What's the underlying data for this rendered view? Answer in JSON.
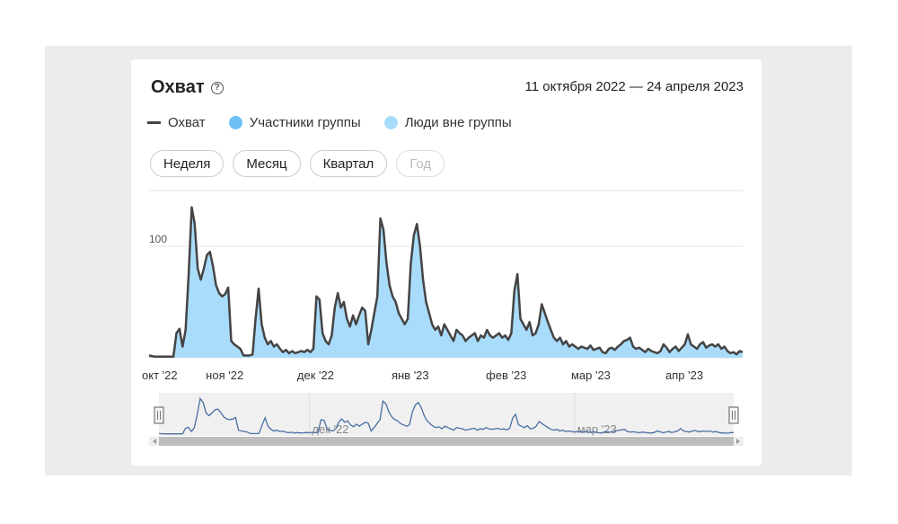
{
  "widget": {
    "title": "Охват",
    "help_icon": "question-circle-icon",
    "date_range": "11 октября 2022 — 24 апреля 2023"
  },
  "legend": [
    {
      "label": "Охват",
      "color": "#444444",
      "shape": "line"
    },
    {
      "label": "Участники группы",
      "color": "#6ec1f7",
      "shape": "dot"
    },
    {
      "label": "Люди вне группы",
      "color": "#a9dcfb",
      "shape": "dot"
    }
  ],
  "periods": [
    {
      "label": "Неделя",
      "enabled": true
    },
    {
      "label": "Месяц",
      "enabled": true
    },
    {
      "label": "Квартал",
      "enabled": true
    },
    {
      "label": "Год",
      "enabled": false
    }
  ],
  "chart_data": {
    "type": "area",
    "x_start": "2022-10-11",
    "x_end": "2023-04-24",
    "ylim": [
      0,
      150
    ],
    "y_ticks": [
      100
    ],
    "grid": true,
    "x_ticks": [
      {
        "label": "окт '22",
        "date": "2022-10-11"
      },
      {
        "label": "ноя '22",
        "date": "2022-11-01"
      },
      {
        "label": "дек '22",
        "date": "2022-12-01"
      },
      {
        "label": "янв '23",
        "date": "2023-01-01"
      },
      {
        "label": "фев '23",
        "date": "2023-02-01"
      },
      {
        "label": "мар '23",
        "date": "2023-03-01"
      },
      {
        "label": "апр '23",
        "date": "2023-04-01"
      }
    ],
    "navigator_ticks": [
      {
        "label": "дек '22",
        "date": "2022-12-01"
      },
      {
        "label": "мар '23",
        "date": "2023-03-01"
      }
    ],
    "series": [
      {
        "name": "Охват",
        "color": "#444444",
        "points": [
          [
            "2022-10-11",
            2
          ],
          [
            "2022-10-13",
            1
          ],
          [
            "2022-10-15",
            1
          ],
          [
            "2022-10-17",
            1
          ],
          [
            "2022-10-19",
            1
          ],
          [
            "2022-10-20",
            22
          ],
          [
            "2022-10-21",
            26
          ],
          [
            "2022-10-22",
            10
          ],
          [
            "2022-10-23",
            25
          ],
          [
            "2022-10-24",
            75
          ],
          [
            "2022-10-25",
            135
          ],
          [
            "2022-10-26",
            120
          ],
          [
            "2022-10-27",
            80
          ],
          [
            "2022-10-28",
            70
          ],
          [
            "2022-10-29",
            80
          ],
          [
            "2022-10-30",
            92
          ],
          [
            "2022-10-31",
            95
          ],
          [
            "2022-11-01",
            82
          ],
          [
            "2022-11-02",
            65
          ],
          [
            "2022-11-03",
            58
          ],
          [
            "2022-11-04",
            55
          ],
          [
            "2022-11-05",
            57
          ],
          [
            "2022-11-06",
            63
          ],
          [
            "2022-11-07",
            15
          ],
          [
            "2022-11-08",
            12
          ],
          [
            "2022-11-09",
            10
          ],
          [
            "2022-11-10",
            8
          ],
          [
            "2022-11-11",
            2
          ],
          [
            "2022-11-12",
            2
          ],
          [
            "2022-11-13",
            2
          ],
          [
            "2022-11-14",
            3
          ],
          [
            "2022-11-15",
            35
          ],
          [
            "2022-11-16",
            62
          ],
          [
            "2022-11-17",
            30
          ],
          [
            "2022-11-18",
            18
          ],
          [
            "2022-11-19",
            12
          ],
          [
            "2022-11-20",
            15
          ],
          [
            "2022-11-21",
            10
          ],
          [
            "2022-11-22",
            12
          ],
          [
            "2022-11-23",
            8
          ],
          [
            "2022-11-24",
            5
          ],
          [
            "2022-11-25",
            7
          ],
          [
            "2022-11-26",
            4
          ],
          [
            "2022-11-27",
            6
          ],
          [
            "2022-11-28",
            4
          ],
          [
            "2022-11-29",
            5
          ],
          [
            "2022-11-30",
            6
          ],
          [
            "2022-12-01",
            5
          ],
          [
            "2022-12-02",
            7
          ],
          [
            "2022-12-03",
            5
          ],
          [
            "2022-12-04",
            8
          ],
          [
            "2022-12-05",
            55
          ],
          [
            "2022-12-06",
            52
          ],
          [
            "2022-12-07",
            22
          ],
          [
            "2022-12-08",
            15
          ],
          [
            "2022-12-09",
            12
          ],
          [
            "2022-12-10",
            20
          ],
          [
            "2022-12-11",
            45
          ],
          [
            "2022-12-12",
            58
          ],
          [
            "2022-12-13",
            45
          ],
          [
            "2022-12-14",
            50
          ],
          [
            "2022-12-15",
            35
          ],
          [
            "2022-12-16",
            28
          ],
          [
            "2022-12-17",
            38
          ],
          [
            "2022-12-18",
            30
          ],
          [
            "2022-12-19",
            38
          ],
          [
            "2022-12-20",
            45
          ],
          [
            "2022-12-21",
            42
          ],
          [
            "2022-12-22",
            12
          ],
          [
            "2022-12-23",
            25
          ],
          [
            "2022-12-24",
            40
          ],
          [
            "2022-12-25",
            55
          ],
          [
            "2022-12-26",
            125
          ],
          [
            "2022-12-27",
            115
          ],
          [
            "2022-12-28",
            85
          ],
          [
            "2022-12-29",
            65
          ],
          [
            "2022-12-30",
            55
          ],
          [
            "2022-12-31",
            50
          ],
          [
            "2023-01-01",
            40
          ],
          [
            "2023-01-02",
            35
          ],
          [
            "2023-01-03",
            30
          ],
          [
            "2023-01-04",
            35
          ],
          [
            "2023-01-05",
            85
          ],
          [
            "2023-01-06",
            110
          ],
          [
            "2023-01-07",
            120
          ],
          [
            "2023-01-08",
            100
          ],
          [
            "2023-01-09",
            70
          ],
          [
            "2023-01-10",
            50
          ],
          [
            "2023-01-11",
            40
          ],
          [
            "2023-01-12",
            30
          ],
          [
            "2023-01-13",
            25
          ],
          [
            "2023-01-14",
            28
          ],
          [
            "2023-01-15",
            20
          ],
          [
            "2023-01-16",
            30
          ],
          [
            "2023-01-17",
            25
          ],
          [
            "2023-01-18",
            20
          ],
          [
            "2023-01-19",
            15
          ],
          [
            "2023-01-20",
            25
          ],
          [
            "2023-01-21",
            22
          ],
          [
            "2023-01-22",
            20
          ],
          [
            "2023-01-23",
            15
          ],
          [
            "2023-01-24",
            18
          ],
          [
            "2023-01-25",
            20
          ],
          [
            "2023-01-26",
            22
          ],
          [
            "2023-01-27",
            15
          ],
          [
            "2023-01-28",
            20
          ],
          [
            "2023-01-29",
            18
          ],
          [
            "2023-01-30",
            25
          ],
          [
            "2023-01-31",
            20
          ],
          [
            "2023-02-01",
            18
          ],
          [
            "2023-02-02",
            20
          ],
          [
            "2023-02-03",
            22
          ],
          [
            "2023-02-04",
            18
          ],
          [
            "2023-02-05",
            20
          ],
          [
            "2023-02-06",
            16
          ],
          [
            "2023-02-07",
            22
          ],
          [
            "2023-02-08",
            60
          ],
          [
            "2023-02-09",
            75
          ],
          [
            "2023-02-10",
            35
          ],
          [
            "2023-02-11",
            30
          ],
          [
            "2023-02-12",
            25
          ],
          [
            "2023-02-13",
            32
          ],
          [
            "2023-02-14",
            20
          ],
          [
            "2023-02-15",
            22
          ],
          [
            "2023-02-16",
            30
          ],
          [
            "2023-02-17",
            48
          ],
          [
            "2023-02-18",
            40
          ],
          [
            "2023-02-19",
            32
          ],
          [
            "2023-02-20",
            25
          ],
          [
            "2023-02-21",
            18
          ],
          [
            "2023-02-22",
            15
          ],
          [
            "2023-02-23",
            18
          ],
          [
            "2023-02-24",
            12
          ],
          [
            "2023-02-25",
            15
          ],
          [
            "2023-02-26",
            10
          ],
          [
            "2023-02-27",
            12
          ],
          [
            "2023-02-28",
            10
          ],
          [
            "2023-03-01",
            8
          ],
          [
            "2023-03-02",
            10
          ],
          [
            "2023-03-03",
            9
          ],
          [
            "2023-03-04",
            8
          ],
          [
            "2023-03-05",
            11
          ],
          [
            "2023-03-06",
            7
          ],
          [
            "2023-03-07",
            8
          ],
          [
            "2023-03-08",
            9
          ],
          [
            "2023-03-09",
            5
          ],
          [
            "2023-03-10",
            4
          ],
          [
            "2023-03-11",
            8
          ],
          [
            "2023-03-12",
            9
          ],
          [
            "2023-03-13",
            7
          ],
          [
            "2023-03-14",
            10
          ],
          [
            "2023-03-15",
            12
          ],
          [
            "2023-03-16",
            15
          ],
          [
            "2023-03-17",
            16
          ],
          [
            "2023-03-18",
            18
          ],
          [
            "2023-03-19",
            10
          ],
          [
            "2023-03-20",
            8
          ],
          [
            "2023-03-21",
            9
          ],
          [
            "2023-03-22",
            7
          ],
          [
            "2023-03-23",
            5
          ],
          [
            "2023-03-24",
            8
          ],
          [
            "2023-03-25",
            6
          ],
          [
            "2023-03-26",
            5
          ],
          [
            "2023-03-27",
            4
          ],
          [
            "2023-03-28",
            6
          ],
          [
            "2023-03-29",
            12
          ],
          [
            "2023-03-30",
            9
          ],
          [
            "2023-03-31",
            5
          ],
          [
            "2023-04-01",
            8
          ],
          [
            "2023-04-02",
            10
          ],
          [
            "2023-04-03",
            6
          ],
          [
            "2023-04-04",
            9
          ],
          [
            "2023-04-05",
            12
          ],
          [
            "2023-04-06",
            21
          ],
          [
            "2023-04-07",
            12
          ],
          [
            "2023-04-08",
            10
          ],
          [
            "2023-04-09",
            8
          ],
          [
            "2023-04-10",
            12
          ],
          [
            "2023-04-11",
            14
          ],
          [
            "2023-04-12",
            9
          ],
          [
            "2023-04-13",
            11
          ],
          [
            "2023-04-14",
            12
          ],
          [
            "2023-04-15",
            10
          ],
          [
            "2023-04-16",
            12
          ],
          [
            "2023-04-17",
            8
          ],
          [
            "2023-04-18",
            10
          ],
          [
            "2023-04-19",
            6
          ],
          [
            "2023-04-20",
            4
          ],
          [
            "2023-04-21",
            5
          ],
          [
            "2023-04-22",
            3
          ],
          [
            "2023-04-23",
            6
          ],
          [
            "2023-04-24",
            5
          ]
        ]
      }
    ]
  }
}
